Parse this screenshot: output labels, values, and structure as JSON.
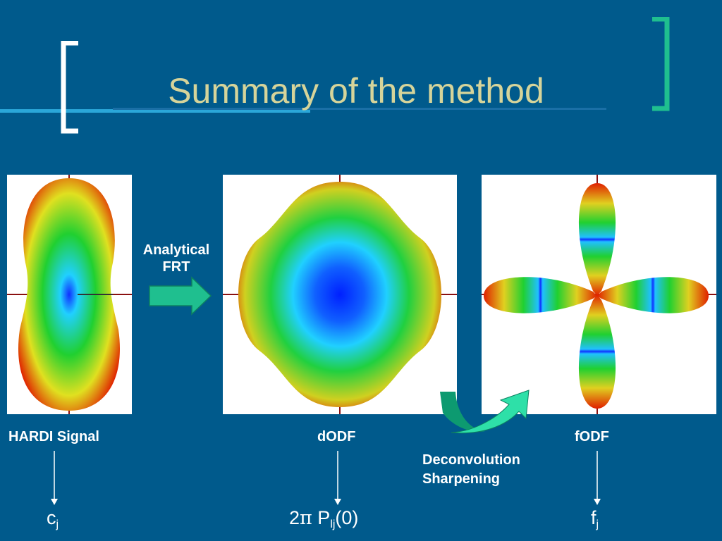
{
  "slide": {
    "title": "Summary of the method",
    "colors": {
      "background": "#005a8c",
      "title": "#d6d49a",
      "accent_green": "#1fbf8f",
      "accent_cyan": "#2aa7d9"
    }
  },
  "panels": [
    {
      "name": "HARDI Signal",
      "symbol_main": "c",
      "symbol_sub": "j"
    },
    {
      "name": "dODF",
      "symbol_prefix": "2",
      "symbol_pi": "π",
      "symbol_main": "P",
      "symbol_sub": "lj",
      "symbol_suffix": "(0)"
    },
    {
      "name": "fODF",
      "symbol_main": "f",
      "symbol_sub": "j"
    }
  ],
  "transforms": {
    "frt_line1": "Analytical",
    "frt_line2": "FRT",
    "deconv_line1": "Deconvolution",
    "deconv_line2": "Sharpening"
  }
}
